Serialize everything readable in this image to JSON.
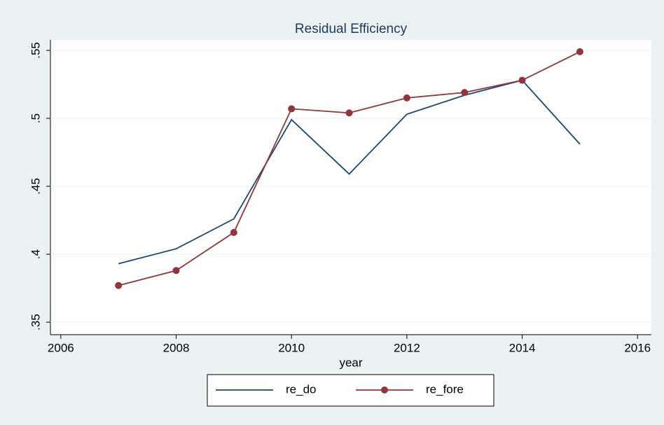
{
  "chart_data": {
    "type": "line",
    "title": "Residual Efficiency",
    "x_label": "year",
    "x": [
      2007,
      2008,
      2009,
      2010,
      2011,
      2012,
      2013,
      2014,
      2015
    ],
    "series": [
      {
        "name": "re_do",
        "color": "#1a476f",
        "values": [
          0.393,
          0.404,
          0.426,
          0.499,
          0.459,
          0.503,
          0.517,
          0.528,
          0.481
        ]
      },
      {
        "name": "re_fore",
        "color": "#90353b",
        "marker": "circle",
        "values": [
          0.377,
          0.388,
          0.416,
          0.507,
          0.504,
          0.515,
          0.519,
          0.528,
          0.549
        ]
      }
    ],
    "xlim": [
      2005.82,
      2016.24
    ],
    "xticks": [
      2006,
      2008,
      2010,
      2012,
      2014,
      2016
    ],
    "ylim": [
      0.3408,
      0.5577
    ],
    "yticks": [
      {
        "value": 0.35,
        "label": ".35"
      },
      {
        "value": 0.4,
        "label": ".4"
      },
      {
        "value": 0.45,
        "label": ".45"
      },
      {
        "value": 0.5,
        "label": ".5"
      },
      {
        "value": 0.55,
        "label": ".55"
      }
    ],
    "grid": true,
    "legend": "bottom"
  }
}
